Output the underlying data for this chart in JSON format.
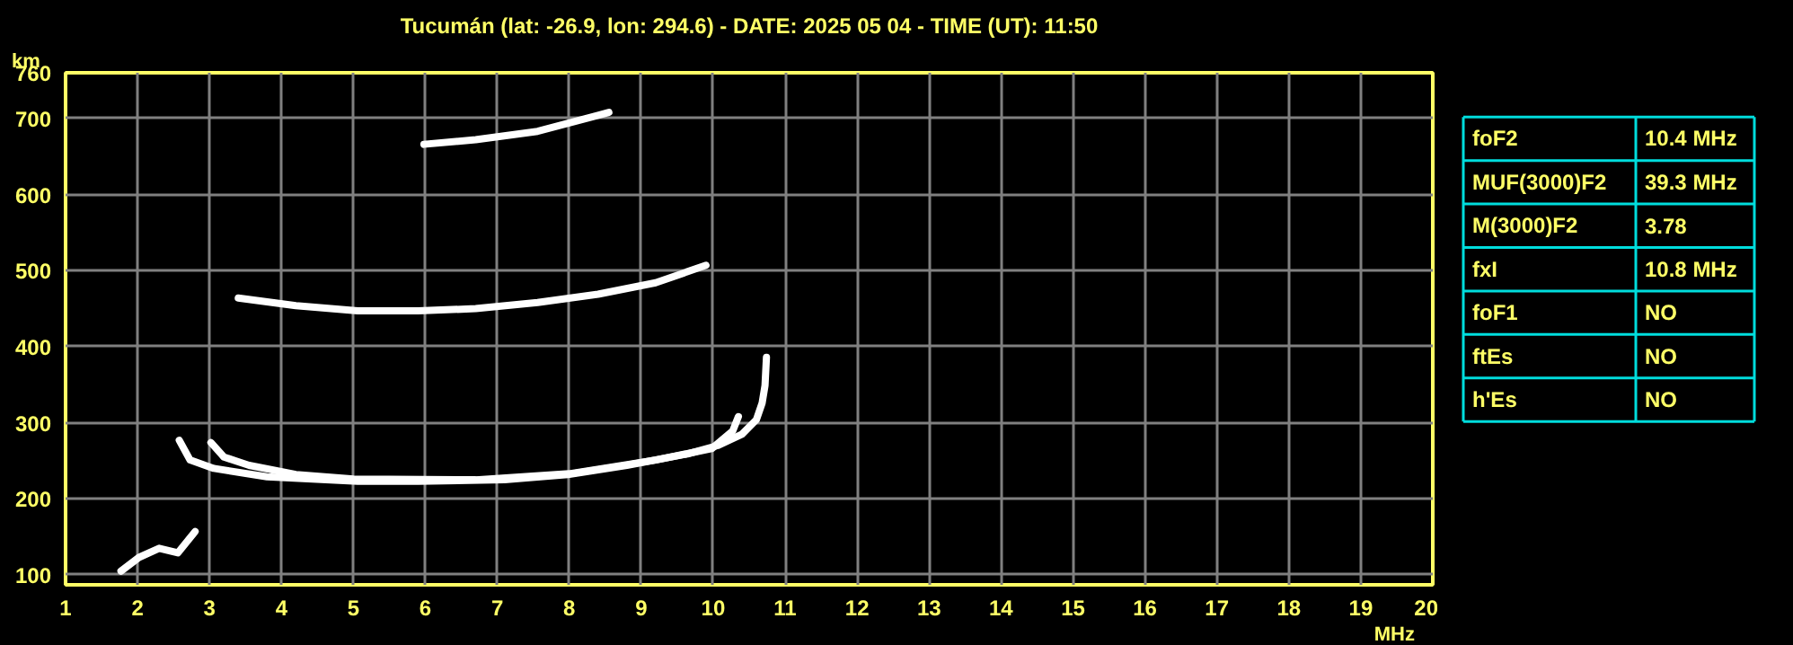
{
  "chart_data": [
    {
      "type": "line",
      "title": "Tucumán (lat: -26.9, lon: 294.6) - DATE: 2025 05 04 - TIME (UT): 11:50",
      "xlabel": "MHz",
      "ylabel": "km",
      "xlim": [
        1,
        20
      ],
      "ylim": [
        87,
        760
      ],
      "xticks": [
        1,
        2,
        3,
        4,
        5,
        6,
        7,
        8,
        9,
        10,
        11,
        12,
        13,
        14,
        15,
        16,
        17,
        18,
        19,
        20
      ],
      "yticks": [
        100,
        200,
        300,
        400,
        500,
        600,
        700,
        760
      ],
      "grid": true,
      "marker": "none",
      "line_style": "solid",
      "series": [
        {
          "color": "#ffffff",
          "x": [
            2.58,
            2.73,
            3.06,
            3.8,
            5.06,
            5.9,
            7.1,
            7.98,
            8.8,
            9.64,
            10.06,
            10.4,
            10.6,
            10.68,
            10.72,
            10.74
          ],
          "values": [
            277,
            251,
            240,
            229,
            223,
            223,
            225,
            232,
            244,
            259,
            270,
            285,
            304,
            326,
            349,
            386
          ]
        },
        {
          "color": "#ffffff",
          "x": [
            3.02,
            3.2,
            3.55,
            4.2,
            5.0,
            6.7,
            8.0,
            9.2,
            9.98,
            10.27,
            10.35
          ],
          "values": [
            274,
            255,
            244,
            232,
            226,
            225,
            233,
            251,
            266,
            289,
            308
          ]
        },
        {
          "color": "#ffffff",
          "x": [
            3.4,
            4.2,
            5.06,
            5.9,
            6.7,
            7.56,
            8.4,
            9.2,
            9.9
          ],
          "values": [
            464,
            454,
            447,
            447,
            450,
            458,
            469,
            484,
            507
          ]
        },
        {
          "color": "#ffffff",
          "x": [
            5.98,
            6.7,
            7.56,
            8.4,
            8.55
          ],
          "values": [
            666,
            672,
            683,
            704,
            708
          ]
        },
        {
          "color": "#ffffff",
          "x": [
            1.77,
            2.02,
            2.3,
            2.56,
            2.8
          ],
          "values": [
            105,
            123,
            135,
            129,
            157
          ]
        }
      ]
    },
    {
      "type": "other",
      "categories": [
        "foF2",
        "MUF(3000)F2",
        "M(3000)F2",
        "fxI",
        "foF1",
        "ftEs",
        "h'Es"
      ],
      "value_labels": [
        "10.4 MHz",
        "39.3 MHz",
        "3.78",
        "10.8 MHz",
        "NO",
        "NO",
        "NO"
      ]
    }
  ]
}
